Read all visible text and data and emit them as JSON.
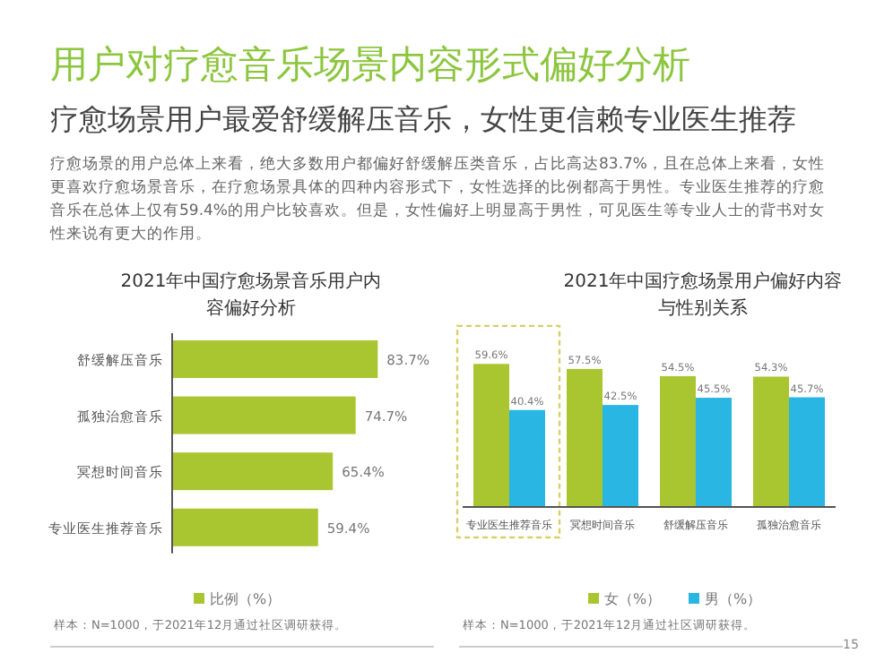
{
  "chart_data": [
    {
      "type": "other",
      "title": "用户对疗愈音乐场景内容形式偏好分析",
      "subtitle": "疗愈场景用户最爱舒缓解压音乐，女性更信赖专业医生推荐",
      "annotations": [
        "疗愈场景的用户总体上来看，绝大多数用户都偏好舒缓解压类音乐，占比高达83.7%，且在总体上来看，女性更喜欢疗愈场景音乐，在疗愈场景具体的四种内容形式下，女性选择的比例都高于男性。专业医生推荐的疗愈音乐在总体上仅有59.4%的用户比较喜欢。但是，女性偏好上明显高于男性，可见医生等专业人士的背书对女性来说有更大的作用。",
        "15"
      ]
    },
    {
      "type": "bar",
      "orientation": "horizontal",
      "title": "2021年中国疗愈场景音乐用户内容偏好分析",
      "categories": [
        "舒缓解压音乐",
        "孤独治愈音乐",
        "冥想时间音乐",
        "专业医生推荐音乐"
      ],
      "series": [
        {
          "name": "比例（%）",
          "color": "#a9c52f",
          "values": [
            83.7,
            74.7,
            65.4,
            59.4
          ],
          "value_labels": [
            "83.7%",
            "74.7%",
            "65.4%",
            "59.4%"
          ]
        }
      ],
      "legend": "bottom",
      "annotations": [
        "样本：N=1000，于2021年12月通过社区调研获得。"
      ]
    },
    {
      "type": "bar",
      "title": "2021年中国疗愈场景用户偏好内容与性别关系",
      "categories": [
        "专业医生推荐音乐",
        "冥想时间音乐",
        "舒缓解压音乐",
        "孤独治愈音乐"
      ],
      "series": [
        {
          "name": "女（%）",
          "color": "#a9c52f",
          "values": [
            59.6,
            57.5,
            54.5,
            54.3
          ],
          "value_labels": [
            "59.6%",
            "57.5%",
            "54.5%",
            "54.3%"
          ]
        },
        {
          "name": "男（%）",
          "color": "#29b6e3",
          "values": [
            40.4,
            42.5,
            45.5,
            45.7
          ],
          "value_labels": [
            "40.4%",
            "42.5%",
            "45.5%",
            "45.7%"
          ]
        }
      ],
      "legend": "bottom",
      "annotations": [
        "样本：N=1000，于2021年12月通过社区调研获得。"
      ]
    }
  ]
}
